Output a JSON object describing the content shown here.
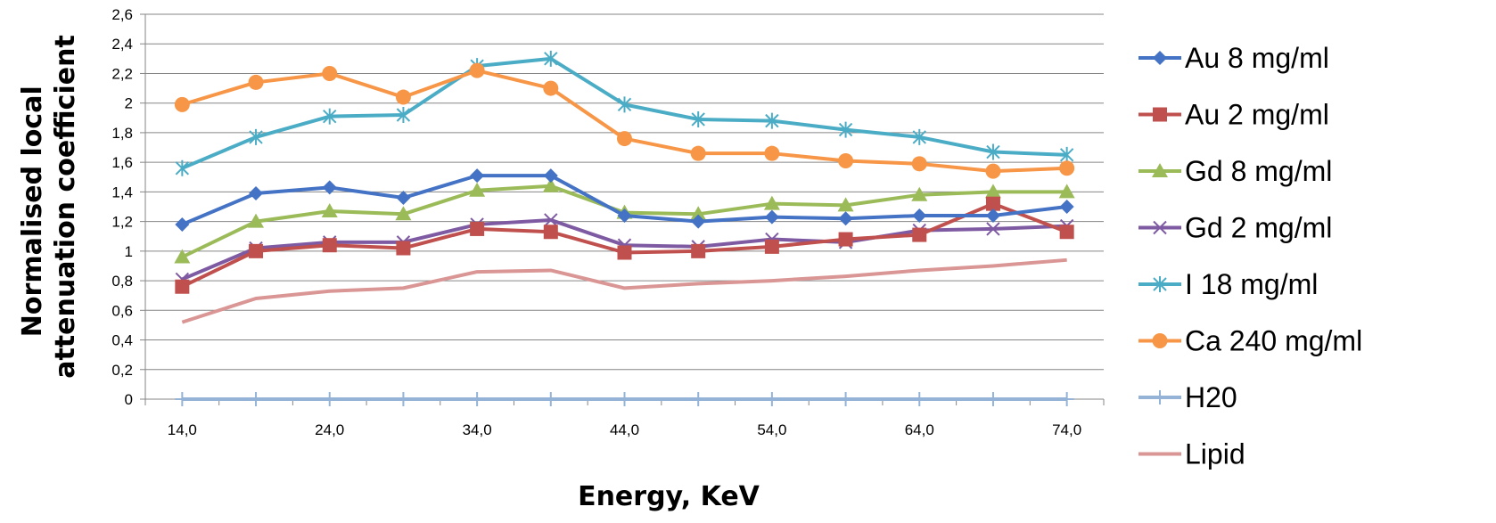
{
  "chart_data": {
    "type": "line",
    "title": "",
    "xlabel": "Energy, KeV",
    "ylabel_lines": [
      "Normalised local",
      "attenuation coefficient"
    ],
    "x": [
      14,
      19,
      24,
      29,
      34,
      39,
      44,
      49,
      54,
      59,
      64,
      69,
      74
    ],
    "x_tick_labels": [
      "14,0",
      "24,0",
      "34,0",
      "44,0",
      "54,0",
      "64,0",
      "74,0"
    ],
    "x_tick_values": [
      14,
      24,
      34,
      44,
      54,
      64,
      74
    ],
    "y_tick_labels": [
      "0",
      "0,2",
      "0,4",
      "0,6",
      "0,8",
      "1",
      "1,2",
      "1,4",
      "1,6",
      "1,8",
      "2",
      "2,2",
      "2,4",
      "2,6"
    ],
    "ylim": [
      0,
      2.6
    ],
    "xlim": [
      11.5,
      76.5
    ],
    "grid": "horizontal",
    "legend_position": "right",
    "series": [
      {
        "name": "Au 8 mg/ml",
        "color": "#4472C4",
        "marker": "diamond",
        "values": [
          1.18,
          1.39,
          1.43,
          1.36,
          1.51,
          1.51,
          1.24,
          1.2,
          1.23,
          1.22,
          1.24,
          1.24,
          1.3
        ]
      },
      {
        "name": "Au 2 mg/ml",
        "color": "#C0504D",
        "marker": "square",
        "values": [
          0.76,
          1.0,
          1.04,
          1.02,
          1.15,
          1.13,
          0.99,
          1.0,
          1.03,
          1.08,
          1.11,
          1.32,
          1.13
        ]
      },
      {
        "name": "Gd 8 mg/ml",
        "color": "#9BBB59",
        "marker": "triangle",
        "values": [
          0.96,
          1.2,
          1.27,
          1.25,
          1.41,
          1.44,
          1.26,
          1.25,
          1.32,
          1.31,
          1.38,
          1.4,
          1.4
        ]
      },
      {
        "name": "Gd 2 mg/ml",
        "color": "#7E5AA2",
        "marker": "x",
        "values": [
          0.81,
          1.02,
          1.06,
          1.06,
          1.18,
          1.21,
          1.04,
          1.03,
          1.08,
          1.06,
          1.14,
          1.15,
          1.17
        ]
      },
      {
        "name": "I 18 mg/ml",
        "color": "#4BACC6",
        "marker": "star",
        "values": [
          1.56,
          1.77,
          1.91,
          1.92,
          2.25,
          2.3,
          1.99,
          1.89,
          1.88,
          1.82,
          1.77,
          1.67,
          1.65
        ]
      },
      {
        "name": "Ca 240 mg/ml",
        "color": "#F79646",
        "marker": "circle",
        "values": [
          1.99,
          2.14,
          2.2,
          2.04,
          2.22,
          2.1,
          1.76,
          1.66,
          1.66,
          1.61,
          1.59,
          1.54,
          1.56
        ]
      },
      {
        "name": "H20",
        "color": "#95B3D7",
        "marker": "plus",
        "values": [
          0,
          0,
          0,
          0,
          0,
          0,
          0,
          0,
          0,
          0,
          0,
          0,
          0
        ]
      },
      {
        "name": "Lipid",
        "color": "#D99694",
        "marker": "none",
        "values": [
          0.52,
          0.68,
          0.73,
          0.75,
          0.86,
          0.87,
          0.75,
          0.78,
          0.8,
          0.83,
          0.87,
          0.9,
          0.94
        ]
      }
    ]
  }
}
